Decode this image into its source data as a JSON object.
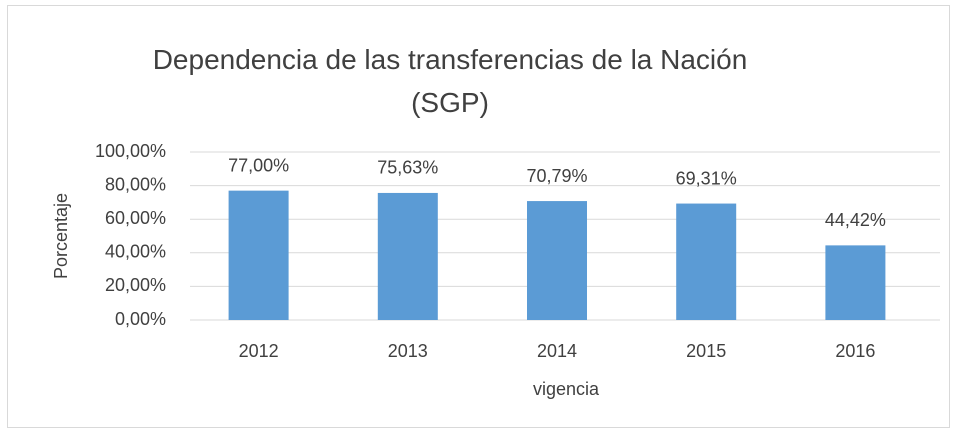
{
  "chart_data": {
    "type": "bar",
    "title": "Dependencia de las transferencias de la Nación (SGP)",
    "x_label": "vigencia",
    "y_label": "Porcentaje",
    "categories": [
      "2012",
      "2013",
      "2014",
      "2015",
      "2016"
    ],
    "values": [
      77.0,
      75.63,
      70.79,
      69.31,
      44.42
    ],
    "value_labels": [
      "77,00%",
      "75,63%",
      "70,79%",
      "69,31%",
      "44,42%"
    ],
    "color": "#5b9bd5",
    "ylim": [
      0,
      100
    ],
    "yticks": [
      {
        "value": 0,
        "label": "0,00%"
      },
      {
        "value": 20,
        "label": "20,00%"
      },
      {
        "value": 40,
        "label": "40,00%"
      },
      {
        "value": 60,
        "label": "60,00%"
      },
      {
        "value": 80,
        "label": "80,00%"
      },
      {
        "value": 100,
        "label": "100,00%"
      }
    ],
    "grid": true
  }
}
